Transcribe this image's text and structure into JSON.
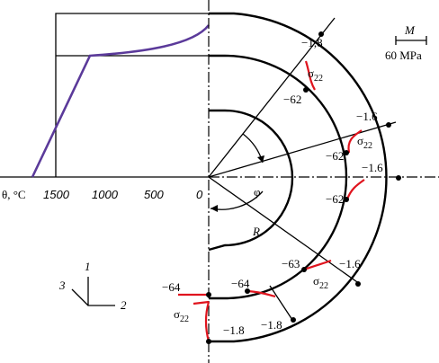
{
  "axis": {
    "label": "θ, °C",
    "ticks": [
      "1500",
      "1000",
      "500",
      "0"
    ]
  },
  "scale_bar": {
    "symbol": "M",
    "value": "60 MPa"
  },
  "angle": "φ",
  "radius": "R",
  "sigma": {
    "symbol": "σ",
    "subscript": "22"
  },
  "stresses": [
    "−1,8",
    "−62",
    "−1.6",
    "−62",
    "−1.6",
    "−62",
    "−63",
    "−1.6",
    "−64",
    "−64",
    "−1.8",
    "−1.8"
  ],
  "coordinate_axes": [
    "1",
    "2",
    "3"
  ]
}
